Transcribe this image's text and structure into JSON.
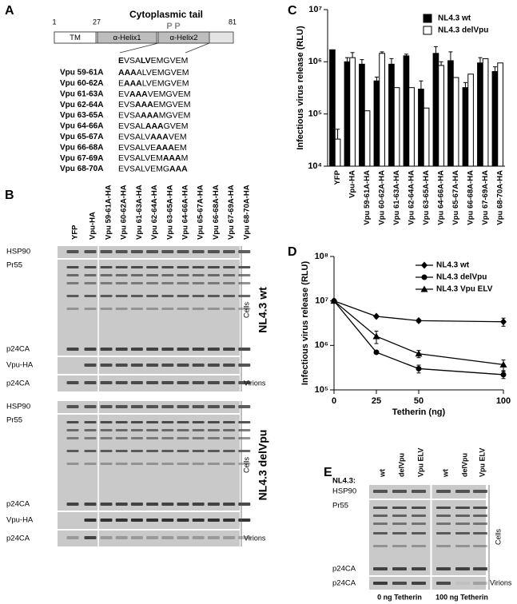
{
  "panel_labels": [
    "A",
    "B",
    "C",
    "D",
    "E"
  ],
  "schematic": {
    "title": "Cytoplasmic tail",
    "positions": [
      1,
      27,
      81
    ],
    "domains": [
      "TM",
      "α-Helix1",
      "α-Helix2"
    ],
    "phospho": [
      "P",
      "P"
    ],
    "reference": [
      {
        "text": "E",
        "bold": true
      },
      {
        "text": "VSA"
      },
      {
        "text": "LV",
        "bold": true
      },
      {
        "text": "EMGVEM"
      }
    ],
    "mutants": [
      {
        "name": "Vpu 59-61A",
        "sequence": [
          {
            "text": "AAA",
            "bold": true
          },
          {
            "text": "ALVEMGVEM"
          }
        ]
      },
      {
        "name": "Vpu 60-62A",
        "sequence": [
          {
            "text": "E"
          },
          {
            "text": "AAA",
            "bold": true
          },
          {
            "text": "LVEMGVEM"
          }
        ]
      },
      {
        "name": "Vpu 61-63A",
        "sequence": [
          {
            "text": "EV"
          },
          {
            "text": "AAA",
            "bold": true
          },
          {
            "text": "VEMGVEM"
          }
        ]
      },
      {
        "name": "Vpu 62-64A",
        "sequence": [
          {
            "text": "EVS"
          },
          {
            "text": "AAA",
            "bold": true
          },
          {
            "text": "EMGVEM"
          }
        ]
      },
      {
        "name": "Vpu 63-65A",
        "sequence": [
          {
            "text": "EVSA"
          },
          {
            "text": "AAA",
            "bold": true
          },
          {
            "text": "MGVEM"
          }
        ]
      },
      {
        "name": "Vpu 64-66A",
        "sequence": [
          {
            "text": "EVSAL"
          },
          {
            "text": "AAA",
            "bold": true
          },
          {
            "text": "GVEM"
          }
        ]
      },
      {
        "name": "Vpu 65-67A",
        "sequence": [
          {
            "text": "EVSALV"
          },
          {
            "text": "AAA",
            "bold": true
          },
          {
            "text": "VEM"
          }
        ]
      },
      {
        "name": "Vpu 66-68A",
        "sequence": [
          {
            "text": "EVSALVE"
          },
          {
            "text": "AAA",
            "bold": true
          },
          {
            "text": "EM"
          }
        ]
      },
      {
        "name": "Vpu 67-69A",
        "sequence": [
          {
            "text": "EVSALVEM"
          },
          {
            "text": "AAA",
            "bold": true
          },
          {
            "text": "M"
          }
        ]
      },
      {
        "name": "Vpu 68-70A",
        "sequence": [
          {
            "text": "EVSALVEMG"
          },
          {
            "text": "AAA",
            "bold": true
          }
        ]
      }
    ]
  },
  "blot_b": {
    "lanes": [
      "YFP",
      "Vpu-HA",
      "Vpu 59-61A-HA",
      "Vpu 60-62A-HA",
      "Vpu 61-63A-HA",
      "Vpu 62-64A-HA",
      "Vpu 63-65A-HA",
      "Vpu 64-66A-HA",
      "Vpu 65-67A-HA",
      "Vpu 66-68A-HA",
      "Vpu 67-69A-HA",
      "Vpu 68-70A-HA"
    ],
    "groups": [
      {
        "label": "NL4.3 wt",
        "rows": [
          "HSP90",
          "Pr55",
          "p24CA",
          "Vpu-HA",
          "p24CA"
        ],
        "cells": "Cells",
        "virions": "Virions"
      },
      {
        "label": "NL4.3 delVpu",
        "rows": [
          "HSP90",
          "Pr55",
          "p24CA",
          "Vpu-HA",
          "p24CA"
        ],
        "cells": "Cells",
        "virions": "Virions"
      }
    ]
  },
  "blot_e": {
    "prefix": "NL4.3:",
    "lanes": [
      "wt",
      "delVpu",
      "Vpu ELV",
      "wt",
      "delVpu",
      "Vpu ELV"
    ],
    "rows": [
      "HSP90",
      "Pr55",
      "p24CA",
      "p24CA"
    ],
    "cells": "Cells",
    "virions": "Virions",
    "conditions": [
      "0 ng Tetherin",
      "100 ng Tetherin"
    ]
  },
  "chart_data": [
    {
      "type": "bar",
      "log": true,
      "legend": "top-right",
      "ylabel": "Infectious virus release (RLU)",
      "categories": [
        "YFP",
        "Vpu-HA",
        "Vpu 59-61A-HA",
        "Vpu 60-62A-HA",
        "Vpu 61-63A-HA",
        "Vpu 62-64A-HA",
        "Vpu 63-65A-HA",
        "Vpu 64-66A-HA",
        "Vpu 65-67A-HA",
        "Vpu 66-68A-HA",
        "Vpu 67-69A-HA",
        "Vpu 68-70A-HA"
      ],
      "series": [
        {
          "name": "NL4.3 wt",
          "color": "#000000",
          "values": [
            1700000,
            1000000,
            900000,
            430000,
            900000,
            1300000,
            300000,
            1450000,
            1050000,
            320000,
            950000,
            650000
          ],
          "errors": [
            0,
            200000,
            200000,
            80000,
            250000,
            100000,
            130000,
            500000,
            500000,
            80000,
            250000,
            150000
          ]
        },
        {
          "name": "NL4.3 delVpu",
          "color": "#ffffff",
          "values": [
            33000,
            1200000,
            115000,
            1450000,
            320000,
            320000,
            130000,
            850000,
            500000,
            580000,
            1150000,
            950000
          ],
          "errors": [
            18000,
            300000,
            0,
            100000,
            0,
            0,
            0,
            150000,
            0,
            0,
            0,
            0
          ]
        }
      ],
      "ylim": [
        10000,
        10000000
      ],
      "yticks": [
        {
          "value": 10000,
          "label": "10⁴"
        },
        {
          "value": 100000,
          "label": "10⁵"
        },
        {
          "value": 1000000,
          "label": "10⁶"
        },
        {
          "value": 10000000,
          "label": "10⁷"
        }
      ]
    },
    {
      "type": "line",
      "log": true,
      "legend": "top-right",
      "xlabel": "Tetherin (ng)",
      "ylabel": "Infectious virus release (RLU)",
      "x": [
        0,
        25,
        50,
        100
      ],
      "series": [
        {
          "name": "NL4.3 wt",
          "color": "#000000",
          "marker": "diamond",
          "values": [
            10000000,
            4500000,
            3600000,
            3400000
          ],
          "errors": [
            0,
            300000,
            300000,
            700000
          ]
        },
        {
          "name": "NL4.3 delVpu",
          "color": "#000000",
          "marker": "circle",
          "values": [
            10000000,
            700000,
            300000,
            220000
          ],
          "errors": [
            0,
            50000,
            60000,
            40000
          ]
        },
        {
          "name": "NL4.3 Vpu ELV",
          "color": "#000000",
          "marker": "triangle",
          "values": [
            10000000,
            1600000,
            650000,
            370000
          ],
          "errors": [
            0,
            500000,
            120000,
            100000
          ]
        }
      ],
      "xlim": [
        0,
        100
      ],
      "xticks": [
        0,
        25,
        50,
        100
      ],
      "ylim": [
        100000,
        100000000
      ],
      "yticks": [
        {
          "value": 100000,
          "label": "10⁵"
        },
        {
          "value": 1000000,
          "label": "10⁶"
        },
        {
          "value": 10000000,
          "label": "10⁷"
        },
        {
          "value": 100000000,
          "label": "10⁸"
        }
      ]
    }
  ]
}
